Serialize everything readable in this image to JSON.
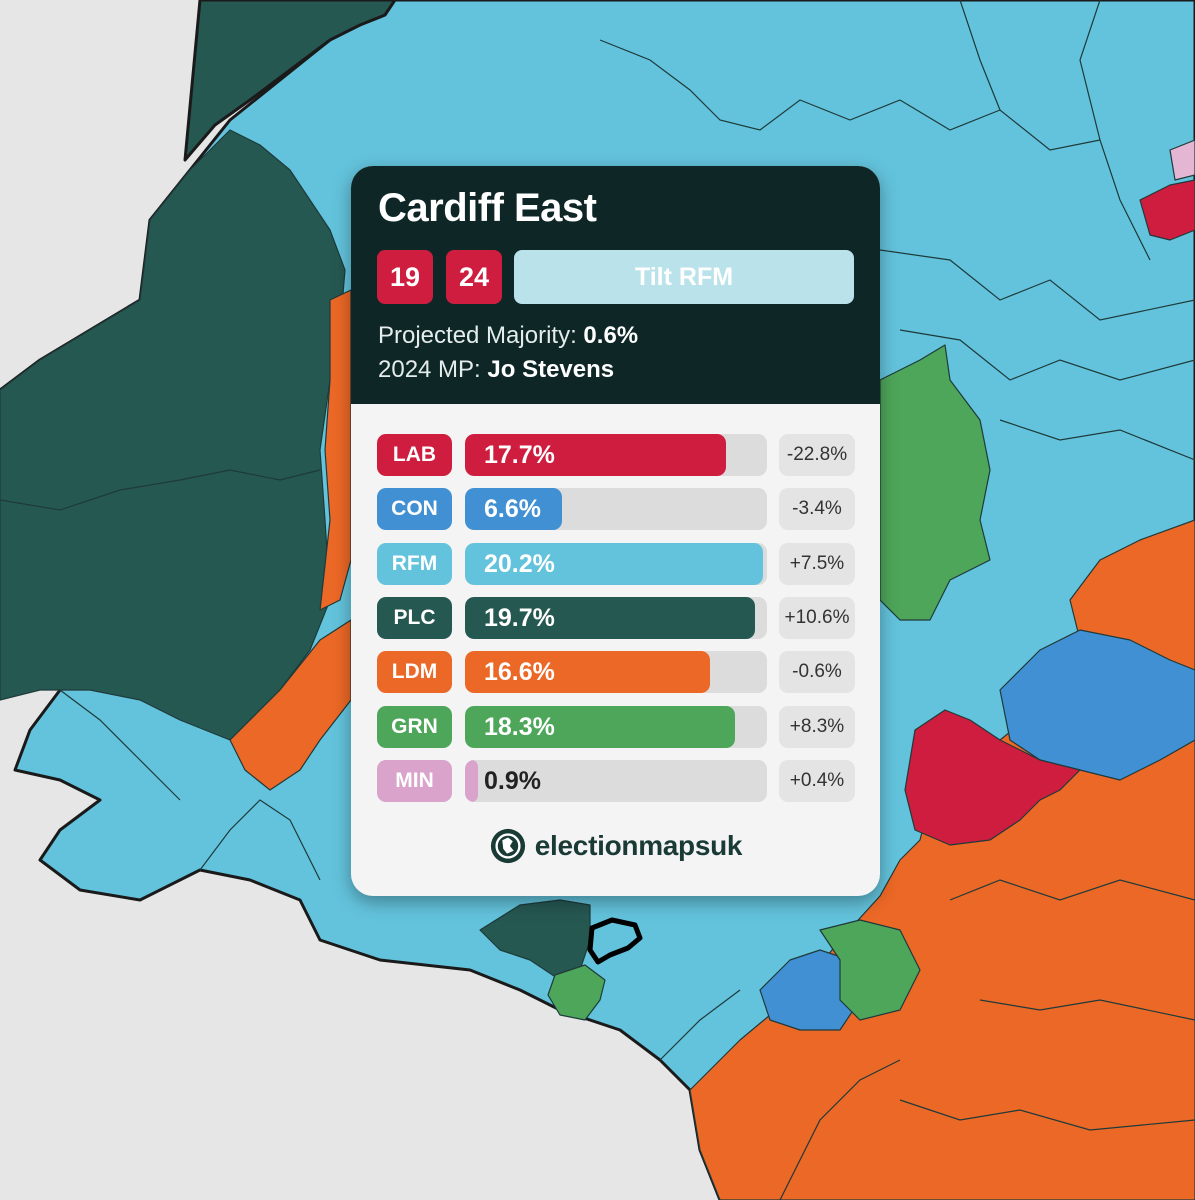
{
  "card": {
    "title": "Cardiff East",
    "years": [
      {
        "label": "19",
        "color": "#cf1d3f"
      },
      {
        "label": "24",
        "color": "#cf1d3f"
      }
    ],
    "rating": {
      "label": "Tilt RFM",
      "color": "#b9e2ea"
    },
    "majority_label": "Projected Majority:",
    "majority_value": "0.6%",
    "mp_label": "2024 MP:",
    "mp_value": "Jo Stevens",
    "parties": [
      {
        "code": "LAB",
        "share": "17.7%",
        "value": 17.7,
        "change": "-22.8%",
        "color": "#cf1d3f"
      },
      {
        "code": "CON",
        "share": "6.6%",
        "value": 6.6,
        "change": "-3.4%",
        "color": "#4090d3"
      },
      {
        "code": "RFM",
        "share": "20.2%",
        "value": 20.2,
        "change": "+7.5%",
        "color": "#63c3dc"
      },
      {
        "code": "PLC",
        "share": "19.7%",
        "value": 19.7,
        "change": "+10.6%",
        "color": "#265852"
      },
      {
        "code": "LDM",
        "share": "16.6%",
        "value": 16.6,
        "change": "-0.6%",
        "color": "#ec6826"
      },
      {
        "code": "GRN",
        "share": "18.3%",
        "value": 18.3,
        "change": "+8.3%",
        "color": "#4ea65a"
      },
      {
        "code": "MIN",
        "share": "0.9%",
        "value": 0.9,
        "change": "+0.4%",
        "color": "#d9a3cc"
      }
    ],
    "bar_max_percent": 20.5,
    "brand": "electionmapsuk"
  },
  "map_colors": {
    "sea": "#e6e6e6",
    "reform": "#63c3dc",
    "plaid": "#265852",
    "libdem": "#ec6826",
    "green": "#4ea65a",
    "labour": "#cf1d3f",
    "conservative": "#4090d3",
    "minor": "#e4b6d4"
  }
}
